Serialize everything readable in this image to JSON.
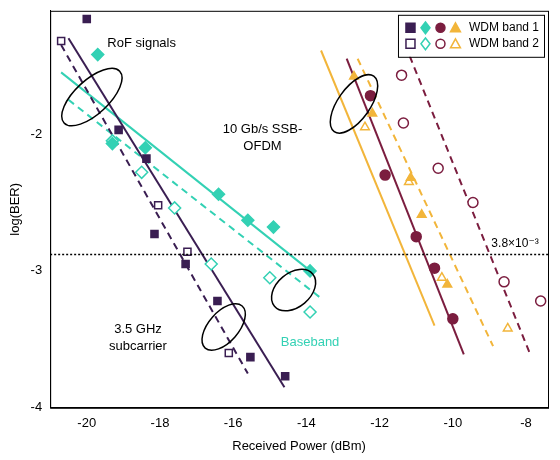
{
  "chart_data": {
    "type": "scatter",
    "x_label": "Received Power (dBm)",
    "y_label": "log(BER)",
    "xlim": [
      -21,
      -7.4
    ],
    "xticks": [
      -20,
      -18,
      -16,
      -14,
      -12,
      -10,
      -8
    ],
    "ylim": [
      -4,
      -1.1
    ],
    "yticks": [
      -4,
      -3,
      -2
    ],
    "grid": false,
    "legend": "upper right",
    "series": [
      {
        "name": "WDM band 1",
        "color": "#3a1e52",
        "marker": "square",
        "values": [
          [
            -20,
            -1.16
          ],
          [
            -19.13,
            -1.97
          ],
          [
            -18.37,
            -2.18
          ],
          [
            -18.15,
            -2.73
          ],
          [
            -17.3,
            -2.95
          ],
          [
            -16.43,
            -3.22
          ],
          [
            -15.53,
            -3.63
          ],
          [
            -14.58,
            -3.77
          ]
        ]
      },
      {
        "name": "WDM band 1",
        "color": "#33d1b4",
        "marker": "diamond",
        "values": [
          [
            -19.7,
            -1.42
          ],
          [
            -19.3,
            -2.07
          ],
          [
            -18.4,
            -2.1
          ],
          [
            -16.4,
            -2.44
          ],
          [
            -15.6,
            -2.63
          ],
          [
            -14.9,
            -2.68
          ],
          [
            -13.9,
            -3.0
          ]
        ]
      },
      {
        "name": "WDM band 1",
        "color": "#7b1d3f",
        "marker": "circle",
        "values": [
          [
            -12.25,
            -1.72
          ],
          [
            -11.85,
            -2.3
          ],
          [
            -11.0,
            -2.75
          ],
          [
            -10.5,
            -2.98
          ],
          [
            -10.0,
            -3.35
          ]
        ]
      },
      {
        "name": "WDM band 1",
        "color": "#f2b53a",
        "marker": "triangle",
        "values": [
          [
            -12.7,
            -1.58
          ],
          [
            -12.2,
            -1.85
          ],
          [
            -11.15,
            -2.32
          ],
          [
            -10.85,
            -2.59
          ],
          [
            -10.15,
            -3.1
          ]
        ]
      },
      {
        "name": "WDM band 2",
        "color": "#3a1e52",
        "marker": "open square",
        "values": [
          [
            -20.7,
            -1.32
          ],
          [
            -18.05,
            -2.52
          ],
          [
            -17.25,
            -2.86
          ],
          [
            -16.12,
            -3.6
          ]
        ]
      },
      {
        "name": "WDM band 2",
        "color": "#33d1b4",
        "marker": "open diamond",
        "values": [
          [
            -19.3,
            -2.05
          ],
          [
            -18.5,
            -2.28
          ],
          [
            -17.6,
            -2.54
          ],
          [
            -16.6,
            -2.95
          ],
          [
            -15.0,
            -3.05
          ],
          [
            -13.9,
            -3.3
          ]
        ]
      },
      {
        "name": "WDM band 2",
        "color": "#7b1d3f",
        "marker": "open circle",
        "values": [
          [
            -11.4,
            -1.57
          ],
          [
            -11.35,
            -1.92
          ],
          [
            -10.4,
            -2.25
          ],
          [
            -9.45,
            -2.5
          ],
          [
            -8.6,
            -3.08
          ],
          [
            -7.6,
            -3.22
          ]
        ]
      },
      {
        "name": "WDM band 2",
        "color": "#f2b53a",
        "marker": "open triangle",
        "values": [
          [
            -12.4,
            -1.95
          ],
          [
            -11.2,
            -2.35
          ],
          [
            -10.3,
            -3.05
          ],
          [
            -8.5,
            -3.42
          ]
        ]
      },
      {
        "name": "WDM band 1",
        "type": "line",
        "color": "#3a1e52",
        "line_style": "solid",
        "values": [
          [
            -20.5,
            -1.3
          ],
          [
            -14.6,
            -3.85
          ]
        ]
      },
      {
        "name": "WDM band 2",
        "type": "line",
        "color": "#3a1e52",
        "line_style": "dashed",
        "values": [
          [
            -20.7,
            -1.35
          ],
          [
            -15.6,
            -3.75
          ]
        ]
      },
      {
        "name": "WDM band 1",
        "type": "line",
        "color": "#33d1b4",
        "line_style": "solid",
        "values": [
          [
            -20.7,
            -1.55
          ],
          [
            -13.8,
            -3.02
          ]
        ]
      },
      {
        "name": "WDM band 2",
        "type": "line",
        "color": "#33d1b4",
        "line_style": "dashed",
        "values": [
          [
            -20.5,
            -1.75
          ],
          [
            -13.6,
            -3.2
          ]
        ]
      },
      {
        "name": "WDM band 1",
        "type": "line",
        "color": "#7b1d3f",
        "line_style": "solid",
        "values": [
          [
            -12.9,
            -1.45
          ],
          [
            -9.7,
            -3.61
          ]
        ]
      },
      {
        "name": "WDM band 2",
        "type": "line",
        "color": "#7b1d3f",
        "line_style": "dashed",
        "values": [
          [
            -11.3,
            -1.35
          ],
          [
            -7.9,
            -3.6
          ]
        ]
      },
      {
        "name": "WDM band 1",
        "type": "line",
        "color": "#f2b53a",
        "line_style": "solid",
        "values": [
          [
            -13.6,
            -1.39
          ],
          [
            -10.5,
            -3.4
          ]
        ]
      },
      {
        "name": "WDM band 2",
        "type": "line",
        "color": "#f2b53a",
        "line_style": "dashed",
        "values": [
          [
            -12.6,
            -1.45
          ],
          [
            -8.9,
            -3.55
          ]
        ]
      }
    ],
    "threshold": {
      "value": -2.88,
      "label": "3.8×10⁻³",
      "line_style": "dotted",
      "x": -8.3
    },
    "annotations": [
      {
        "text": [
          "RoF signals"
        ],
        "x": -18.5,
        "y": -1.34,
        "ellipse": [
          -19.86,
          -1.73
        ]
      },
      {
        "text": [
          "10 Gb/s SSB-",
          "OFDM"
        ],
        "x": -15.2,
        "y": -2.03,
        "ellipse": [
          -12.7,
          -1.78
        ]
      },
      {
        "text": [
          "3.5 GHz",
          "subcarrier"
        ],
        "x": -18.6,
        "y": -3.49,
        "ellipse": [
          -16.26,
          -3.41
        ]
      },
      {
        "text": [
          "Baseband"
        ],
        "x": -13.9,
        "y": -3.52,
        "ellipse": [
          -14.35,
          -3.14
        ],
        "color": "#33d1b4"
      }
    ]
  }
}
